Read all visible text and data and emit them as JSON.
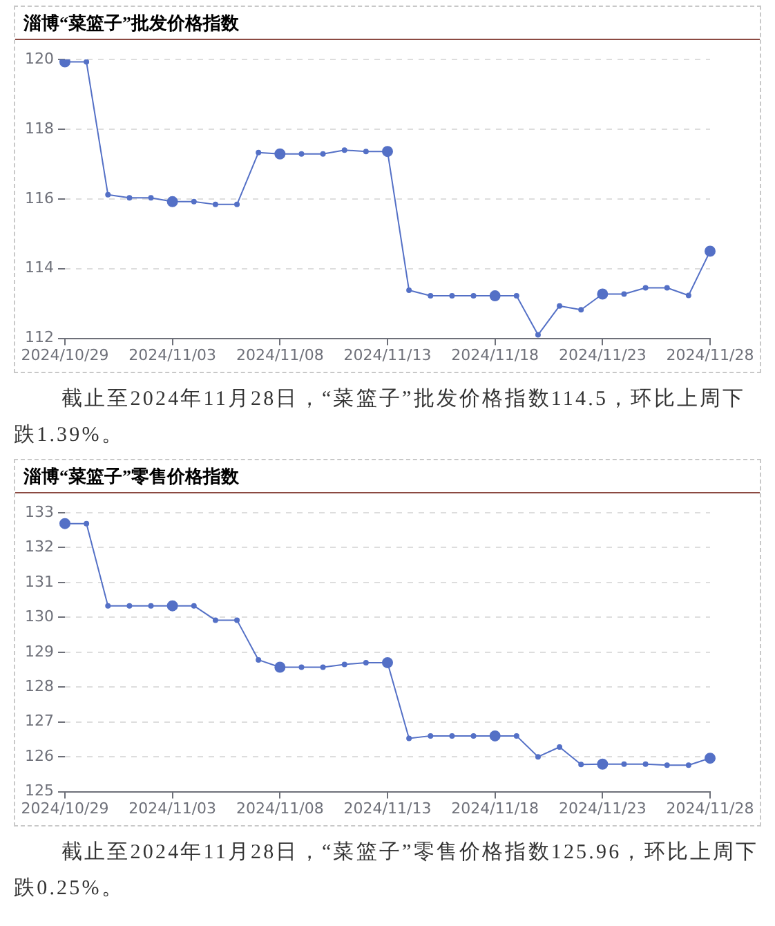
{
  "chart_data": [
    {
      "type": "line",
      "title": "淄博“菜篮子”批发价格指数",
      "categories": [
        "2024/10/29",
        null,
        null,
        null,
        null,
        "2024/11/03",
        null,
        null,
        null,
        null,
        "2024/11/08",
        null,
        null,
        null,
        null,
        "2024/11/13",
        null,
        null,
        null,
        null,
        "2024/11/18",
        null,
        null,
        null,
        null,
        "2024/11/23",
        null,
        null,
        null,
        null,
        "2024/11/28"
      ],
      "series": [
        {
          "color": "#5470c6",
          "values": [
            119.93,
            119.93,
            116.12,
            116.03,
            116.03,
            115.92,
            115.92,
            115.84,
            115.84,
            117.33,
            117.29,
            117.29,
            117.29,
            117.4,
            117.36,
            117.36,
            113.38,
            113.22,
            113.22,
            113.22,
            113.22,
            113.22,
            112.1,
            112.93,
            112.82,
            113.27,
            113.27,
            113.45,
            113.45,
            113.23,
            114.5
          ]
        }
      ],
      "ylim": [
        112,
        120
      ],
      "yticks": [
        112,
        114,
        116,
        118,
        120
      ],
      "grid": "y",
      "legend": false,
      "marker": "circle",
      "line_style": "solid",
      "annotations": [
        "截止至2024年11月28日，“菜篮子”批发价格指数114.5，环比上周下跌1.39%。"
      ]
    },
    {
      "type": "line",
      "title": "淄博“菜篮子”零售价格指数",
      "categories": [
        "2024/10/29",
        null,
        null,
        null,
        null,
        "2024/11/03",
        null,
        null,
        null,
        null,
        "2024/11/08",
        null,
        null,
        null,
        null,
        "2024/11/13",
        null,
        null,
        null,
        null,
        "2024/11/18",
        null,
        null,
        null,
        null,
        "2024/11/23",
        null,
        null,
        null,
        null,
        "2024/11/28"
      ],
      "series": [
        {
          "color": "#5470c6",
          "values": [
            132.69,
            132.69,
            130.33,
            130.33,
            130.33,
            130.33,
            130.33,
            129.92,
            129.92,
            128.78,
            128.57,
            128.57,
            128.57,
            128.65,
            128.7,
            128.7,
            126.53,
            126.6,
            126.6,
            126.6,
            126.6,
            126.6,
            126.0,
            126.28,
            125.78,
            125.79,
            125.79,
            125.79,
            125.76,
            125.76,
            125.96
          ]
        }
      ],
      "ylim": [
        125,
        133
      ],
      "yticks": [
        125,
        126,
        127,
        128,
        129,
        130,
        131,
        132,
        133
      ],
      "grid": "y",
      "legend": false,
      "marker": "circle",
      "line_style": "solid",
      "annotations": [
        "截止至2024年11月28日，“菜篮子”零售价格指数125.96，环比上周下跌0.25%。"
      ]
    }
  ]
}
